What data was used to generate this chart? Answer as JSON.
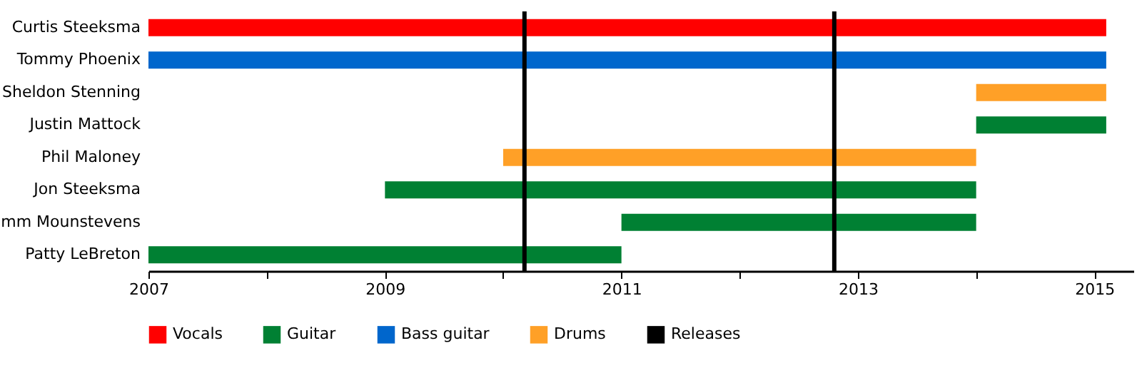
{
  "chart_data": {
    "type": "bar",
    "orientation": "horizontal",
    "categories": [
      "Curtis Steeksma",
      "Tommy Phoenix",
      "Sheldon Stenning",
      "Justin Mattock",
      "Phil Maloney",
      "Jon Steeksma",
      "mm Mounstevens",
      "Patty LeBreton"
    ],
    "series": [
      {
        "name": "Vocals",
        "color": "#ff0000",
        "base": [
          2007,
          null,
          null,
          null,
          null,
          null,
          null,
          null
        ],
        "values": [
          8.1,
          null,
          null,
          null,
          null,
          null,
          null,
          null
        ]
      },
      {
        "name": "Guitar",
        "color": "#008033",
        "base": [
          null,
          null,
          null,
          2014,
          null,
          2009,
          2011,
          2007
        ],
        "values": [
          null,
          null,
          null,
          1.1,
          null,
          5,
          3,
          4
        ]
      },
      {
        "name": "Bass guitar",
        "color": "#0066cc",
        "base": [
          null,
          2007,
          null,
          null,
          null,
          null,
          null,
          null
        ],
        "values": [
          null,
          8.1,
          null,
          null,
          null,
          null,
          null,
          null
        ]
      },
      {
        "name": "Drums",
        "color": "#ffa027",
        "base": [
          null,
          null,
          2014,
          null,
          2010,
          null,
          null,
          null
        ],
        "values": [
          null,
          null,
          1.1,
          null,
          4,
          null,
          null,
          null
        ]
      }
    ],
    "ref_lines": [
      {
        "axis": "x",
        "value": 2010.18,
        "label": "Releases",
        "color": "#000000"
      },
      {
        "axis": "x",
        "value": 2012.8,
        "color": "#000000"
      }
    ],
    "xlim": [
      2007,
      2015.33
    ],
    "xticks": [
      2007,
      {
        "value": 2008,
        "label": null
      },
      2009,
      {
        "value": 2010,
        "label": null
      },
      2011,
      {
        "value": 2012,
        "label": null
      },
      2013,
      {
        "value": 2014,
        "label": null
      },
      2015
    ],
    "grid": false,
    "legend": "bottom"
  }
}
